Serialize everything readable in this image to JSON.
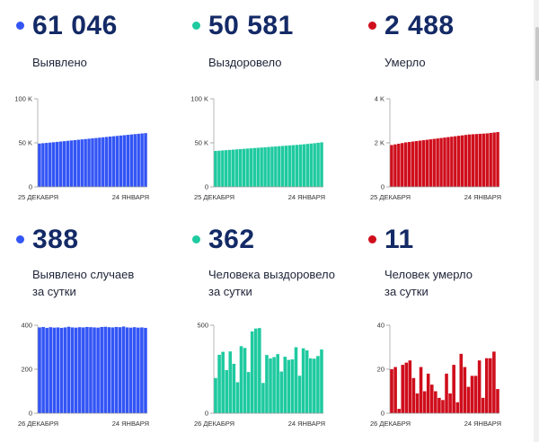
{
  "cards": [
    {
      "value": "61 046",
      "label_line1": "Выявлено",
      "label_line2": "",
      "color": "#3355f5"
    },
    {
      "value": "50 581",
      "label_line1": "Выздоровело",
      "label_line2": "",
      "color": "#1fcaa0"
    },
    {
      "value": "2 488",
      "label_line1": "Умерло",
      "label_line2": "",
      "color": "#cf0e1c"
    },
    {
      "value": "388",
      "label_line1": "Выявлено случаев",
      "label_line2": "за сутки",
      "color": "#3355f5"
    },
    {
      "value": "362",
      "label_line1": "Человека выздоровело",
      "label_line2": "за сутки",
      "color": "#1fcaa0"
    },
    {
      "value": "11",
      "label_line1": "Человек умерло",
      "label_line2": "за сутки",
      "color": "#cf0e1c"
    }
  ],
  "chart_data": [
    {
      "type": "bar",
      "series": [
        {
          "values": [
            49200,
            49600,
            49900,
            50300,
            50700,
            51100,
            51500,
            51900,
            52300,
            52700,
            53100,
            53500,
            53900,
            54300,
            54700,
            55100,
            55500,
            55900,
            56300,
            56700,
            57100,
            57500,
            57900,
            58300,
            58700,
            59100,
            59500,
            59900,
            60300,
            60700,
            61046
          ]
        }
      ],
      "x_start_label": "25 ДЕКАБРЯ",
      "x_end_label": "24 ЯНВАРЯ",
      "ylim": [
        0,
        100000
      ],
      "yticks": [
        {
          "value": 0,
          "label": "0"
        },
        {
          "value": 50000,
          "label": "50 K"
        },
        {
          "value": 100000,
          "label": "100 K"
        }
      ],
      "grid": false,
      "color": "#3355f5"
    },
    {
      "type": "bar",
      "series": [
        {
          "values": [
            40800,
            41100,
            41400,
            41700,
            42000,
            42300,
            42600,
            42900,
            43200,
            43500,
            43800,
            44100,
            44400,
            44700,
            45000,
            45300,
            45600,
            45900,
            46200,
            46500,
            46800,
            47100,
            47400,
            47700,
            48000,
            48400,
            48800,
            49200,
            49600,
            50100,
            50581
          ]
        }
      ],
      "x_start_label": "25 ДЕКАБРЯ",
      "x_end_label": "24 ЯНВАРЯ",
      "ylim": [
        0,
        100000
      ],
      "yticks": [
        {
          "value": 0,
          "label": "0"
        },
        {
          "value": 50000,
          "label": "50 K"
        },
        {
          "value": 100000,
          "label": "100 K"
        }
      ],
      "grid": false,
      "color": "#1fcaa0"
    },
    {
      "type": "bar",
      "series": [
        {
          "values": [
            1900,
            1930,
            1960,
            1990,
            2020,
            2040,
            2060,
            2080,
            2100,
            2120,
            2140,
            2160,
            2180,
            2200,
            2220,
            2240,
            2260,
            2280,
            2300,
            2320,
            2340,
            2360,
            2380,
            2390,
            2400,
            2410,
            2420,
            2430,
            2450,
            2470,
            2488
          ]
        }
      ],
      "x_start_label": "25 ДЕКАБРЯ",
      "x_end_label": "24 ЯНВАРЯ",
      "ylim": [
        0,
        4000
      ],
      "yticks": [
        {
          "value": 0,
          "label": "0"
        },
        {
          "value": 2000,
          "label": "2 K"
        },
        {
          "value": 4000,
          "label": "4 K"
        }
      ],
      "grid": false,
      "color": "#cf0e1c"
    },
    {
      "type": "bar",
      "series": [
        {
          "values": [
            390,
            392,
            388,
            391,
            389,
            390,
            388,
            390,
            393,
            390,
            389,
            391,
            390,
            392,
            391,
            390,
            389,
            392,
            393,
            391,
            390,
            392,
            391,
            394,
            390,
            389,
            391,
            389,
            390,
            388
          ]
        }
      ],
      "x_start_label": "26 ДЕКАБРЯ",
      "x_end_label": "24 ЯНВАРЯ",
      "ylim": [
        0,
        400
      ],
      "yticks": [
        {
          "value": 0,
          "label": "0"
        },
        {
          "value": 200,
          "label": "200"
        },
        {
          "value": 400,
          "label": "400"
        }
      ],
      "grid": false,
      "color": "#3355f5"
    },
    {
      "type": "bar",
      "series": [
        {
          "values": [
            200,
            332,
            349,
            245,
            351,
            281,
            176,
            381,
            371,
            234,
            465,
            481,
            484,
            172,
            331,
            311,
            319,
            336,
            237,
            321,
            303,
            306,
            375,
            213,
            369,
            357,
            312,
            310,
            325,
            362
          ]
        }
      ],
      "x_start_label": "26 ДЕКАБРЯ",
      "x_end_label": "24 ЯНВАРЯ",
      "ylim": [
        0,
        500
      ],
      "yticks": [
        {
          "value": 0,
          "label": "0"
        },
        {
          "value": 500,
          "label": "500"
        }
      ],
      "grid": false,
      "color": "#1fcaa0"
    },
    {
      "type": "bar",
      "series": [
        {
          "values": [
            20,
            21,
            2,
            22,
            23,
            24,
            16,
            9,
            21,
            10,
            18,
            13,
            10,
            7,
            6,
            18,
            9,
            22,
            5,
            27,
            21,
            12,
            17,
            17,
            24,
            7,
            25,
            25,
            28,
            11
          ]
        }
      ],
      "x_start_label": "26 ДЕКАБРЯ",
      "x_end_label": "24 ЯНВАРЯ",
      "ylim": [
        0,
        40
      ],
      "yticks": [
        {
          "value": 0,
          "label": "0"
        },
        {
          "value": 20,
          "label": "20"
        },
        {
          "value": 40,
          "label": "40"
        }
      ],
      "grid": false,
      "color": "#cf0e1c"
    }
  ]
}
